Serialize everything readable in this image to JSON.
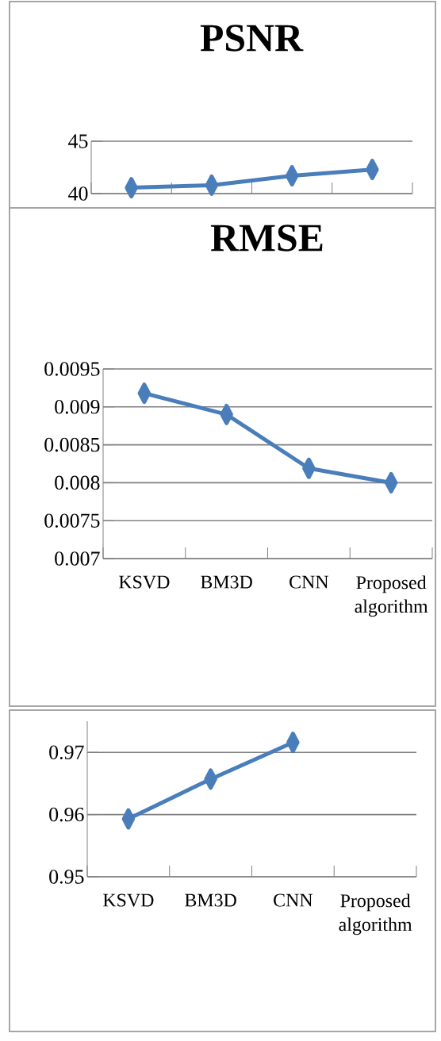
{
  "chart_data": [
    {
      "type": "line",
      "title": "PSNR",
      "categories": [
        null,
        null,
        null,
        null
      ],
      "values": [
        40.56,
        40.8,
        41.7,
        42.3
      ],
      "color": "#4a7ebb",
      "ylim": [
        40,
        45
      ],
      "yticks": [
        40,
        45
      ],
      "grid": "y",
      "marker": "diamond",
      "tick_labels": "y"
    },
    {
      "type": "line",
      "title": "RMSE",
      "categories": [
        "KSVD",
        "BM3D",
        "CNN",
        "Proposed algorithm"
      ],
      "values": [
        0.00918,
        0.0089,
        0.00819,
        0.008
      ],
      "color": "#4a7ebb",
      "ylim": [
        0.007,
        0.0095
      ],
      "yticks": [
        0.007,
        0.0075,
        0.008,
        0.0085,
        0.009,
        0.0095
      ],
      "grid": "y",
      "marker": "diamond"
    },
    {
      "type": "line",
      "categories": [
        "KSVD",
        "BM3D",
        "CNN",
        "Proposed algorithm"
      ],
      "values": [
        0.9593,
        0.9657,
        0.9716,
        null
      ],
      "color": "#4a7ebb",
      "ylim": [
        0.95,
        0.975
      ],
      "yticks": [
        0.95,
        0.96,
        0.97
      ],
      "grid": "y",
      "marker": "diamond"
    }
  ]
}
